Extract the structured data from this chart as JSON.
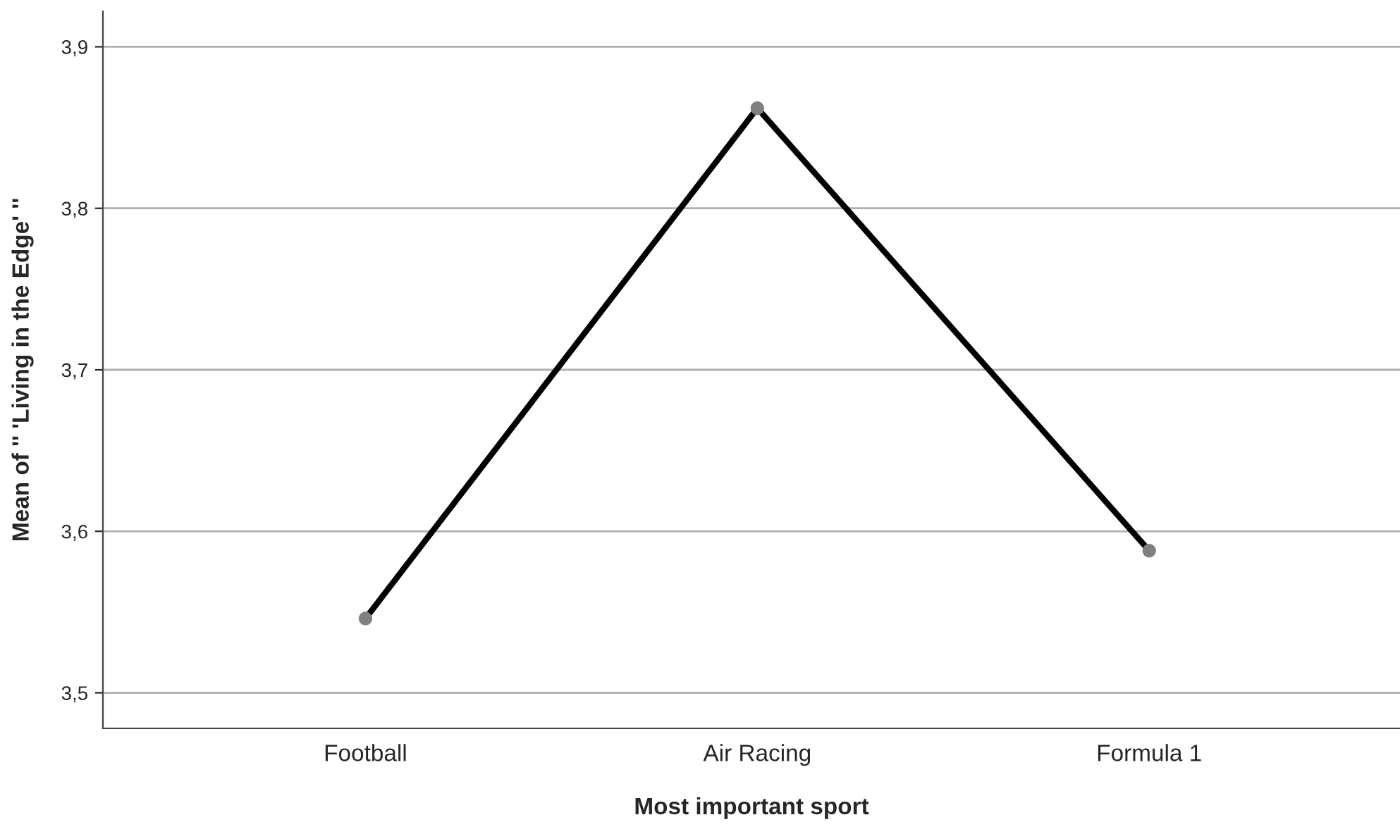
{
  "chart_data": {
    "type": "line",
    "xlabel": "Most important sport",
    "ylabel": "Mean of '' 'Living in the Edge' ''",
    "categories": [
      "Football",
      "Air Racing",
      "Formula 1"
    ],
    "series": [
      {
        "color": "#000000",
        "values": [
          3.546,
          3.862,
          3.588
        ]
      }
    ],
    "ylim": [
      3.478,
      3.922
    ],
    "yticks": [
      {
        "value": 3.5,
        "label": "3,5"
      },
      {
        "value": 3.6,
        "label": "3,6"
      },
      {
        "value": 3.7,
        "label": "3,7"
      },
      {
        "value": 3.8,
        "label": "3,8"
      },
      {
        "value": 3.9,
        "label": "3,9"
      }
    ],
    "grid": "y",
    "marker": "circle",
    "line_style": "solid"
  }
}
